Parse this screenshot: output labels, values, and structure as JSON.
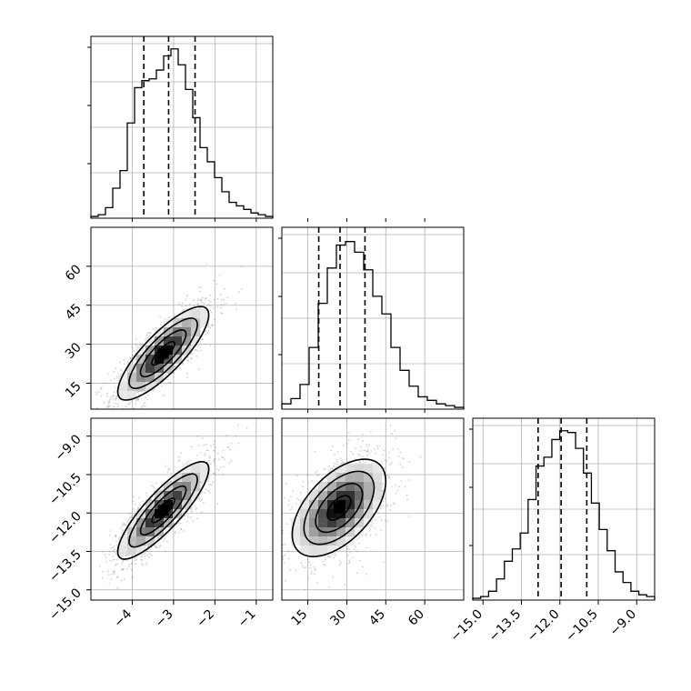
{
  "chart_data": {
    "type": "corner",
    "title": "",
    "parameters": [
      {
        "ticks": [
          -4,
          -3,
          -2,
          -1
        ],
        "tick_labels": [
          "−4",
          "−3",
          "−2",
          "−1"
        ],
        "range": [
          -5.0,
          -0.6
        ],
        "quantiles": [
          -3.72,
          -3.12,
          -2.48
        ],
        "histogram": [
          0.01,
          0.02,
          0.06,
          0.17,
          0.27,
          0.54,
          0.74,
          0.78,
          0.79,
          0.84,
          0.92,
          0.96,
          0.87,
          0.73,
          0.57,
          0.4,
          0.32,
          0.23,
          0.15,
          0.09,
          0.07,
          0.05,
          0.03,
          0.02,
          0.01
        ]
      },
      {
        "ticks": [
          15,
          30,
          45,
          60
        ],
        "tick_labels": [
          "15",
          "30",
          "45",
          "60"
        ],
        "range": [
          5,
          75
        ],
        "quantiles": [
          19.2,
          27.4,
          37.0
        ],
        "histogram": [
          0.03,
          0.06,
          0.14,
          0.35,
          0.6,
          0.8,
          0.93,
          0.95,
          0.89,
          0.79,
          0.64,
          0.54,
          0.35,
          0.22,
          0.13,
          0.07,
          0.05,
          0.03,
          0.02,
          0.01
        ]
      },
      {
        "ticks": [
          -15.0,
          -13.5,
          -12.0,
          -10.5,
          -9.0
        ],
        "tick_labels": [
          "−15.0",
          "−13.5",
          "−12.0",
          "−10.5",
          "−9.0"
        ],
        "range": [
          -15.4,
          -8.3
        ],
        "quantiles": [
          -12.85,
          -11.95,
          -10.95
        ],
        "histogram": [
          0.01,
          0.02,
          0.05,
          0.12,
          0.22,
          0.29,
          0.38,
          0.57,
          0.76,
          0.81,
          0.91,
          0.96,
          0.95,
          0.86,
          0.72,
          0.55,
          0.4,
          0.28,
          0.16,
          0.1,
          0.05,
          0.03,
          0.02
        ]
      }
    ],
    "joint": [
      {
        "row": 1,
        "col": 0,
        "center": [
          -3.25,
          26.5
        ],
        "sigma": [
          0.55,
          9.0
        ],
        "rho": 0.82,
        "contour_levels": [
          0.5,
          1.0,
          1.5,
          2.0
        ]
      },
      {
        "row": 2,
        "col": 0,
        "center": [
          -3.25,
          -11.9
        ],
        "sigma": [
          0.55,
          0.95
        ],
        "rho": 0.85,
        "contour_levels": [
          0.5,
          1.0,
          1.5,
          2.0
        ]
      },
      {
        "row": 2,
        "col": 1,
        "center": [
          27.0,
          -11.8
        ],
        "sigma": [
          9.0,
          0.95
        ],
        "rho": 0.55,
        "contour_levels": [
          0.5,
          1.0,
          1.5,
          2.0
        ]
      }
    ]
  }
}
